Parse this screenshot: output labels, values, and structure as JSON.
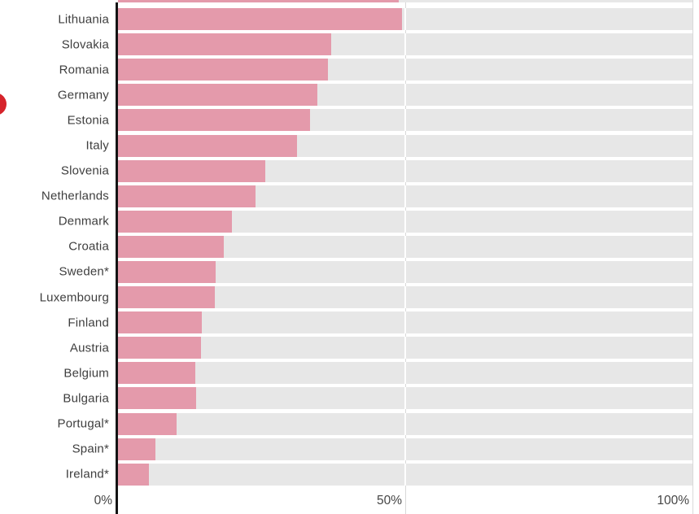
{
  "chart_data": {
    "type": "bar",
    "orientation": "horizontal",
    "title": "",
    "categories": [
      "Lithuania",
      "Slovakia",
      "Romania",
      "Germany",
      "Estonia",
      "Italy",
      "Slovenia",
      "Netherlands",
      "Denmark",
      "Croatia",
      "Sweden*",
      "Luxembourg",
      "Finland",
      "Austria",
      "Belgium",
      "Bulgaria",
      "Portugal*",
      "Spain*",
      "Ireland*"
    ],
    "values": [
      49.5,
      37.1,
      36.5,
      34.7,
      33.4,
      31.2,
      25.6,
      23.9,
      19.9,
      18.4,
      17.0,
      16.8,
      14.6,
      14.5,
      13.4,
      13.6,
      10.2,
      6.5,
      5.4
    ],
    "unit": "%",
    "xlabel": "",
    "ylabel": "",
    "xlim": [
      0,
      100
    ],
    "x_ticks": [
      {
        "value": 0,
        "label": "0%"
      },
      {
        "value": 50,
        "label": "50%"
      },
      {
        "value": 100,
        "label": "100%"
      }
    ],
    "partial_top_bar_value": 48.8,
    "grid": "vertical gridlines at 50% and 100%, track background to 100%",
    "legend": "none"
  },
  "colors": {
    "bar": "#e49aab",
    "track": "#e7e7e7",
    "gridline": "#d9d9d9",
    "axis_line": "#141414",
    "label_text": "#3e3e3e",
    "tick_text": "#454545",
    "background": "#ffffff",
    "red_dot": "#d6232b"
  },
  "decorations": {
    "red_dot_partially_visible_left_edge": true
  }
}
